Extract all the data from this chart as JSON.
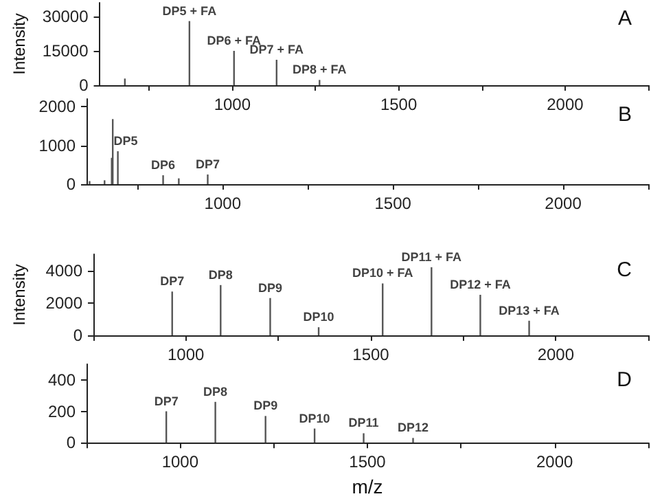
{
  "chart_data": [
    {
      "type": "bar",
      "ylabel": "Intensity",
      "x": [
        677,
        871,
        1005,
        1133,
        1262
      ],
      "values": [
        2900,
        28000,
        15000,
        11100,
        2300
      ],
      "color": "#555555",
      "xlim": [
        600,
        2250
      ],
      "xticks": [
        {
          "value": 750,
          "label": null
        },
        1000,
        {
          "value": 1250,
          "label": null
        },
        1500,
        {
          "value": 1750,
          "label": null
        },
        2000,
        {
          "value": 2250,
          "label": null
        }
      ],
      "ylim": [
        0,
        36000
      ],
      "yticks": [
        0,
        15000,
        30000
      ],
      "annotations": [
        "A",
        {
          "text": "DP5 + FA",
          "x": 871,
          "y": 28000
        },
        {
          "text": "DP6 + FA",
          "x": 1005,
          "y": 15000
        },
        {
          "text": "DP7 + FA",
          "x": 1133,
          "y": 11100
        },
        {
          "text": "DP8 + FA",
          "x": 1262,
          "y": 2300
        }
      ]
    },
    {
      "type": "bar",
      "x": [
        609,
        653,
        674,
        677,
        692,
        825,
        871,
        956
      ],
      "values": [
        80,
        100,
        680,
        1680,
        850,
        230,
        150,
        250
      ],
      "color": "#555555",
      "xlim": [
        600,
        2250
      ],
      "xticks": [
        {
          "value": 750,
          "label": null
        },
        1000,
        {
          "value": 1250,
          "label": null
        },
        1500,
        {
          "value": 1750,
          "label": null
        },
        2000,
        {
          "value": 2250,
          "label": null
        }
      ],
      "ylim": [
        0,
        2200
      ],
      "yticks": [
        0,
        1000,
        2000
      ],
      "annotations": [
        "B",
        {
          "text": "DP5",
          "x": 692,
          "y": 850
        },
        {
          "text": "DP6",
          "x": 825,
          "y": 230
        },
        {
          "text": "DP7",
          "x": 956,
          "y": 250
        }
      ]
    },
    {
      "type": "bar",
      "x": [
        963,
        1094,
        1228,
        1359,
        1532,
        1664,
        1796,
        1928
      ],
      "values": [
        2700,
        3100,
        2300,
        500,
        3200,
        4200,
        2500,
        900
      ],
      "color": "#555555",
      "xlim": [
        750,
        2250
      ],
      "xticks": [
        {
          "value": 750,
          "label": null
        },
        1000,
        {
          "value": 1250,
          "label": null
        },
        1500,
        {
          "value": 1750,
          "label": null
        },
        2000,
        {
          "value": 2250,
          "label": null
        }
      ],
      "ylim": [
        0,
        5000
      ],
      "yticks": [
        0,
        2000,
        4000
      ],
      "ylabel": "Intensity",
      "annotations": [
        "C",
        {
          "text": "DP7",
          "x": 963,
          "y": 2700
        },
        {
          "text": "DP8",
          "x": 1094,
          "y": 3100
        },
        {
          "text": "DP9",
          "x": 1228,
          "y": 2300
        },
        {
          "text": "DP10",
          "x": 1359,
          "y": 500
        },
        {
          "text": "DP10 + FA",
          "x": 1532,
          "y": 3200
        },
        {
          "text": "DP11 + FA",
          "x": 1664,
          "y": 4200
        },
        {
          "text": "DP12 + FA",
          "x": 1796,
          "y": 2500
        },
        {
          "text": "DP13 + FA",
          "x": 1928,
          "y": 900
        }
      ]
    },
    {
      "type": "bar",
      "x": [
        963,
        1094,
        1228,
        1359,
        1490,
        1622
      ],
      "values": [
        200,
        260,
        170,
        90,
        60,
        30
      ],
      "color": "#555555",
      "xlim": [
        750,
        2250
      ],
      "xticks": [
        {
          "value": 750,
          "label": null
        },
        1000,
        {
          "value": 1250,
          "label": null
        },
        1500,
        {
          "value": 1750,
          "label": null
        },
        2000,
        {
          "value": 2250,
          "label": null
        }
      ],
      "ylim": [
        0,
        500
      ],
      "yticks": [
        0,
        200,
        400
      ],
      "xlabel": "m/z",
      "annotations": [
        "D",
        {
          "text": "DP7",
          "x": 963,
          "y": 200
        },
        {
          "text": "DP8",
          "x": 1094,
          "y": 260
        },
        {
          "text": "DP9",
          "x": 1228,
          "y": 170
        },
        {
          "text": "DP10",
          "x": 1359,
          "y": 90
        },
        {
          "text": "DP11",
          "x": 1490,
          "y": 60
        },
        {
          "text": "DP12",
          "x": 1622,
          "y": 30
        }
      ]
    }
  ]
}
